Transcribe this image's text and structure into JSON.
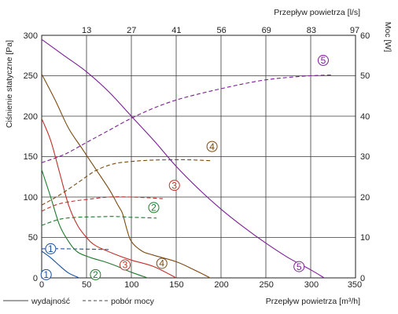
{
  "chart_data": {
    "type": "line",
    "x_bottom": {
      "label": "Przepływ powietrza [m³/h]",
      "range": [
        0,
        350
      ],
      "ticks": [
        "0",
        "50",
        "100",
        "150",
        "200",
        "250",
        "300",
        "350"
      ]
    },
    "x_top": {
      "label": "Przepływ powietrza [l/s]",
      "ticks": [
        "13",
        "27",
        "41",
        "56",
        "69",
        "83",
        "97"
      ]
    },
    "y_left": {
      "label": "Ciśnienie statyczne [Pa]",
      "range": [
        0,
        300
      ],
      "ticks": [
        "0",
        "50",
        "100",
        "150",
        "200",
        "250",
        "300"
      ]
    },
    "y_right": {
      "label": "Moc [W]",
      "range": [
        0,
        60
      ],
      "ticks": [
        "0",
        "10",
        "20",
        "30",
        "40",
        "50",
        "60"
      ]
    },
    "grid": true,
    "legend": {
      "placement": "bottom-left",
      "solid_label": "wydajność",
      "dashed_label": "pobór mocy"
    },
    "series": [
      {
        "marker": "1",
        "color": "#1a4fa0",
        "pressure": [
          [
            0,
            33
          ],
          [
            10,
            25
          ],
          [
            20,
            15
          ],
          [
            30,
            6
          ],
          [
            42,
            0
          ]
        ],
        "power": [
          [
            0,
            7.2
          ],
          [
            25,
            7.2
          ],
          [
            55,
            7.1
          ],
          [
            75,
            7.0
          ]
        ]
      },
      {
        "marker": "2",
        "color": "#1f7a2e",
        "pressure": [
          [
            0,
            134
          ],
          [
            10,
            100
          ],
          [
            20,
            65
          ],
          [
            30,
            45
          ],
          [
            40,
            32
          ],
          [
            55,
            25
          ],
          [
            70,
            20
          ],
          [
            85,
            14
          ],
          [
            100,
            7
          ],
          [
            118,
            0
          ]
        ],
        "power": [
          [
            0,
            13.0
          ],
          [
            20,
            14.5
          ],
          [
            40,
            15.0
          ],
          [
            60,
            15.1
          ],
          [
            80,
            15.2
          ],
          [
            100,
            15.0
          ],
          [
            128,
            14.8
          ]
        ]
      },
      {
        "marker": "3",
        "color": "#c0302a",
        "pressure": [
          [
            0,
            197
          ],
          [
            10,
            170
          ],
          [
            20,
            130
          ],
          [
            30,
            90
          ],
          [
            40,
            65
          ],
          [
            50,
            50
          ],
          [
            60,
            40
          ],
          [
            80,
            30
          ],
          [
            100,
            22
          ],
          [
            125,
            14
          ],
          [
            150,
            0
          ]
        ],
        "power": [
          [
            0,
            16.5
          ],
          [
            15,
            18.0
          ],
          [
            30,
            18.8
          ],
          [
            50,
            19.4
          ],
          [
            75,
            20.0
          ],
          [
            100,
            20.0
          ],
          [
            120,
            19.8
          ],
          [
            135,
            19.6
          ]
        ]
      },
      {
        "marker": "4",
        "color": "#7a4a10",
        "pressure": [
          [
            0,
            252
          ],
          [
            15,
            220
          ],
          [
            30,
            185
          ],
          [
            45,
            160
          ],
          [
            60,
            135
          ],
          [
            75,
            110
          ],
          [
            85,
            90
          ],
          [
            90,
            80
          ],
          [
            95,
            60
          ],
          [
            100,
            45
          ],
          [
            112,
            33
          ],
          [
            125,
            28
          ],
          [
            150,
            20
          ],
          [
            170,
            10
          ],
          [
            188,
            0
          ]
        ],
        "power": [
          [
            0,
            18.0
          ],
          [
            20,
            20.5
          ],
          [
            40,
            23.5
          ],
          [
            60,
            26.5
          ],
          [
            80,
            28.2
          ],
          [
            100,
            28.8
          ],
          [
            120,
            29.1
          ],
          [
            140,
            29.2
          ],
          [
            165,
            29.2
          ],
          [
            188,
            29.0
          ]
        ]
      },
      {
        "marker": "5",
        "color": "#7b1e96",
        "pressure": [
          [
            0,
            295
          ],
          [
            25,
            275
          ],
          [
            50,
            255
          ],
          [
            75,
            230
          ],
          [
            100,
            200
          ],
          [
            125,
            170
          ],
          [
            150,
            138
          ],
          [
            175,
            110
          ],
          [
            200,
            85
          ],
          [
            225,
            63
          ],
          [
            250,
            43
          ],
          [
            275,
            25
          ],
          [
            300,
            10
          ],
          [
            315,
            0
          ]
        ],
        "power": [
          [
            0,
            28.5
          ],
          [
            25,
            30.5
          ],
          [
            50,
            33.5
          ],
          [
            75,
            36.5
          ],
          [
            100,
            39.5
          ],
          [
            125,
            42.0
          ],
          [
            150,
            44.0
          ],
          [
            175,
            45.5
          ],
          [
            200,
            46.8
          ],
          [
            225,
            48.0
          ],
          [
            250,
            49.0
          ],
          [
            275,
            49.6
          ],
          [
            300,
            50.0
          ],
          [
            325,
            50.2
          ]
        ]
      }
    ]
  }
}
